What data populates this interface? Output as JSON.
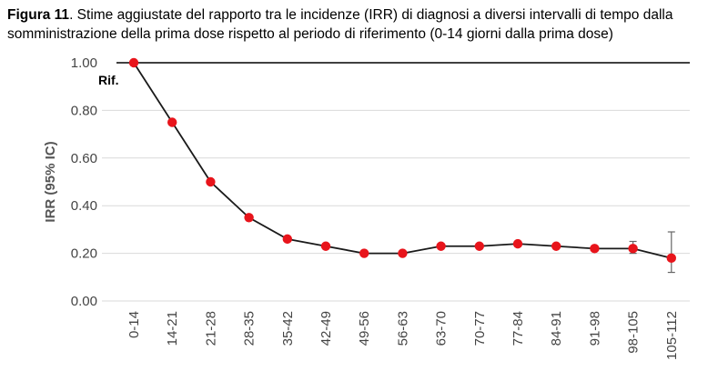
{
  "caption": {
    "label": "Figura 11",
    "text": ". Stime aggiustate del rapporto tra le incidenze (IRR) di diagnosi a diversi intervalli di tempo dalla somministrazione della prima dose rispetto al periodo di riferimento (0-14 giorni dalla prima dose)"
  },
  "chart_data": {
    "type": "line",
    "title": "",
    "xlabel": "",
    "ylabel": "IRR (95% IC)",
    "ylim": [
      0,
      1
    ],
    "yticks": [
      "0.00",
      "0.20",
      "0.40",
      "0.60",
      "0.80",
      "1.00"
    ],
    "reference_line": 1.0,
    "annotation": "Rif.",
    "grid": true,
    "categories": [
      "0-14",
      "14-21",
      "21-28",
      "28-35",
      "35-42",
      "42-49",
      "49-56",
      "56-63",
      "63-70",
      "70-77",
      "77-84",
      "84-91",
      "91-98",
      "98-105",
      "105-112"
    ],
    "series": [
      {
        "values": [
          1.0,
          0.75,
          0.5,
          0.35,
          0.26,
          0.23,
          0.2,
          0.2,
          0.23,
          0.23,
          0.24,
          0.23,
          0.22,
          0.22,
          0.18
        ],
        "ci_lower": [
          null,
          null,
          null,
          null,
          null,
          null,
          null,
          null,
          null,
          null,
          null,
          null,
          null,
          0.2,
          0.12
        ],
        "ci_upper": [
          null,
          null,
          null,
          null,
          null,
          null,
          null,
          null,
          null,
          null,
          null,
          null,
          null,
          0.25,
          0.29
        ]
      }
    ],
    "colors": {
      "marker": "#e8141b",
      "line": "#1a1a1a",
      "grid": "#d9d9d9",
      "reference": "#000000"
    }
  }
}
